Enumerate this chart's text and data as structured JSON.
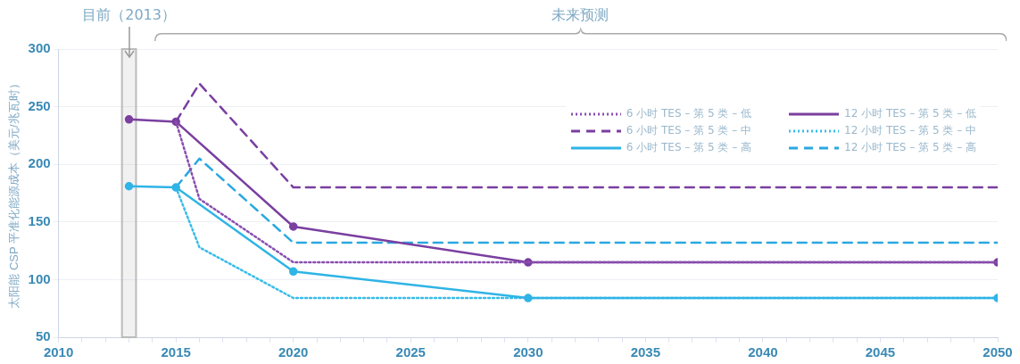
{
  "chart_data": {
    "type": "line",
    "ylabel": "太阳能 CSP 平准化能源成本（美元/兆瓦时）",
    "xlim": [
      2010,
      2050
    ],
    "xticks": [
      2010,
      {
        "value": 2011,
        "label": null
      },
      {
        "value": 2012,
        "label": null
      },
      {
        "value": 2013,
        "label": null
      },
      {
        "value": 2014,
        "label": null
      },
      2015,
      {
        "value": 2016,
        "label": null
      },
      {
        "value": 2017,
        "label": null
      },
      {
        "value": 2018,
        "label": null
      },
      {
        "value": 2019,
        "label": null
      },
      2020,
      {
        "value": 2021,
        "label": null
      },
      {
        "value": 2022,
        "label": null
      },
      {
        "value": 2023,
        "label": null
      },
      {
        "value": 2024,
        "label": null
      },
      2025,
      {
        "value": 2026,
        "label": null
      },
      {
        "value": 2027,
        "label": null
      },
      {
        "value": 2028,
        "label": null
      },
      {
        "value": 2029,
        "label": null
      },
      2030,
      {
        "value": 2031,
        "label": null
      },
      {
        "value": 2032,
        "label": null
      },
      {
        "value": 2033,
        "label": null
      },
      {
        "value": 2034,
        "label": null
      },
      2035,
      {
        "value": 2036,
        "label": null
      },
      {
        "value": 2037,
        "label": null
      },
      {
        "value": 2038,
        "label": null
      },
      {
        "value": 2039,
        "label": null
      },
      2040,
      {
        "value": 2041,
        "label": null
      },
      {
        "value": 2042,
        "label": null
      },
      {
        "value": 2043,
        "label": null
      },
      {
        "value": 2044,
        "label": null
      },
      2045,
      {
        "value": 2046,
        "label": null
      },
      {
        "value": 2047,
        "label": null
      },
      {
        "value": 2048,
        "label": null
      },
      {
        "value": 2049,
        "label": null
      },
      2050
    ],
    "ylim": [
      50,
      300
    ],
    "yticks": [
      50,
      100,
      150,
      200,
      250,
      300
    ],
    "grid": "y",
    "legend": "top right",
    "series": [
      {
        "name": "6 小时 TES – 第 5 类 – 低",
        "color": "#8a4fb0",
        "line_style": "dotted",
        "x": [
          2015,
          2016,
          2020,
          2050
        ],
        "values": [
          237,
          170,
          115,
          115
        ]
      },
      {
        "name": "6 小时 TES – 第 5 类 – 中",
        "color": "#7a3fa0",
        "line_style": "dashed",
        "x": [
          2015,
          2016,
          2020,
          2050
        ],
        "values": [
          237,
          270,
          180,
          180
        ]
      },
      {
        "name": "6 小时 TES – 第 5 类 – 高",
        "color": "#2fb4e6",
        "line_style": "solid",
        "marker": "circle",
        "x": [
          2013,
          2015,
          2020,
          2030,
          2050
        ],
        "values": [
          181,
          180,
          107,
          84,
          84
        ]
      },
      {
        "name": "12 小时 TES – 第 5 类 – 低",
        "color": "#7a3fa0",
        "line_style": "solid",
        "marker": "circle",
        "x": [
          2013,
          2015,
          2020,
          2030,
          2050
        ],
        "values": [
          239,
          237,
          146,
          115,
          115
        ]
      },
      {
        "name": "12 小时 TES – 第 5 类 – 中",
        "color": "#3bbde8",
        "line_style": "dotted",
        "x": [
          2015,
          2016,
          2020,
          2050
        ],
        "values": [
          180,
          128,
          84,
          84
        ]
      },
      {
        "name": "12 小时 TES – 第 5 类 – 高",
        "color": "#2aa8e0",
        "line_style": "dashed",
        "x": [
          2015,
          2016,
          2020,
          2050
        ],
        "values": [
          180,
          205,
          132,
          132
        ]
      }
    ],
    "bands": [
      {
        "axis": "x",
        "from": 2012.7,
        "to": 2013.3,
        "color": "#bbbbbb"
      }
    ],
    "annotations": [
      {
        "text": "目前（2013）",
        "x": 2013
      },
      "未来预测"
    ]
  }
}
